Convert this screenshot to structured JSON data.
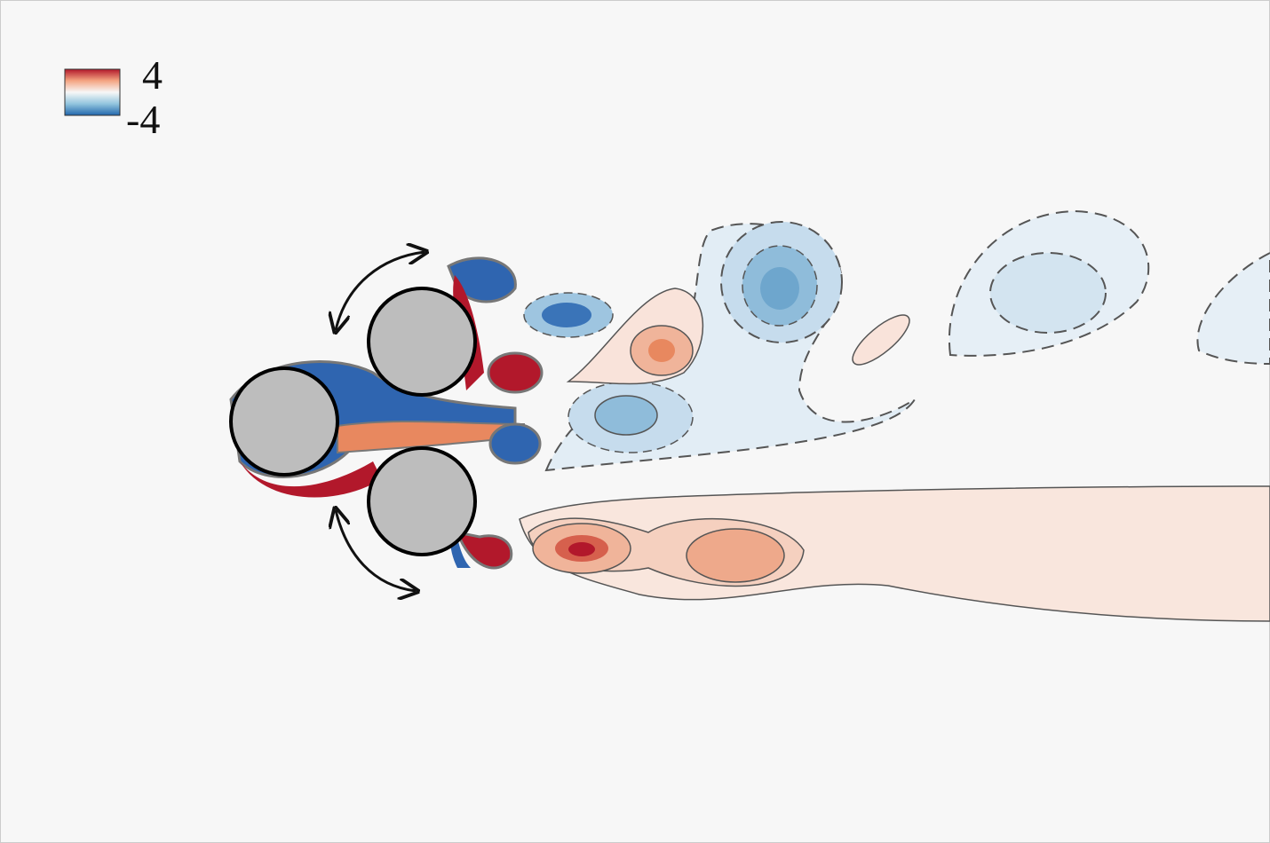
{
  "colorbar": {
    "max_label": "4",
    "min_label": "-4"
  }
}
